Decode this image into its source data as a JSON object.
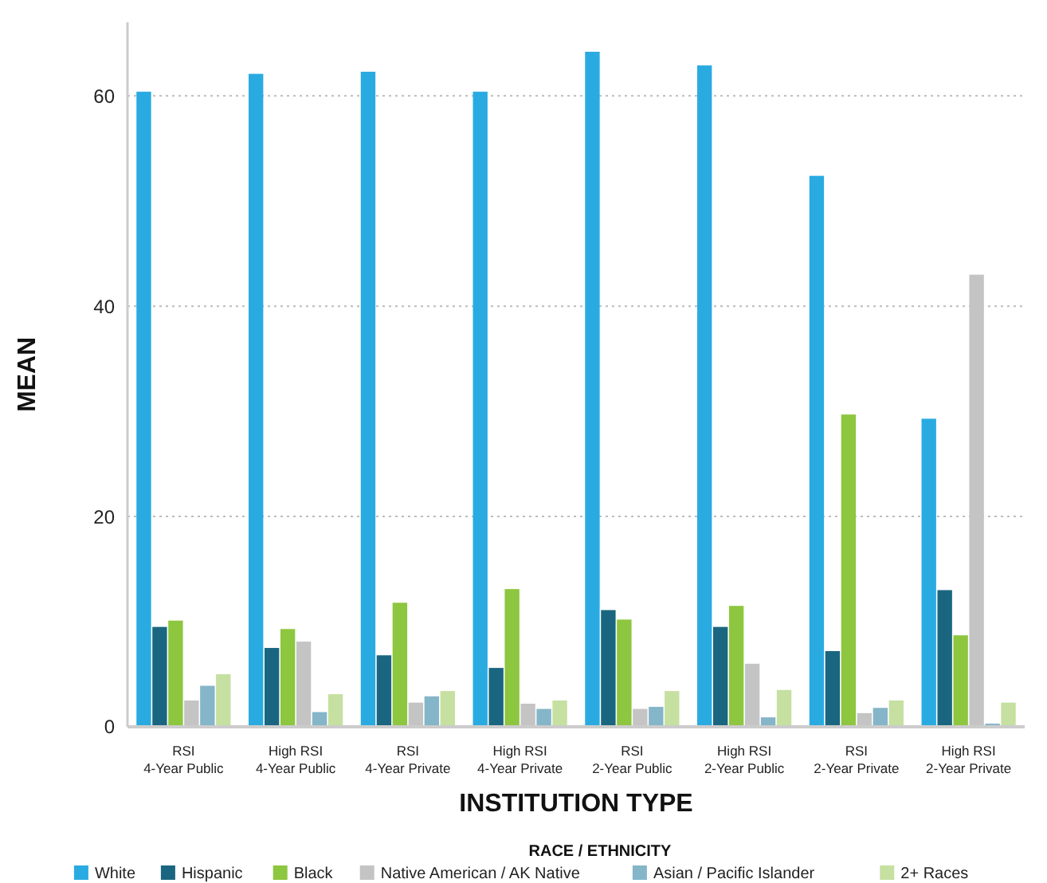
{
  "chart_data": {
    "type": "bar",
    "xlabel": "INSTITUTION TYPE",
    "ylabel": "MEAN",
    "legend_title": "RACE / ETHNICITY",
    "legend": "bottom",
    "grid": "y",
    "categories": [
      "RSI\n4-Year Public",
      "High RSI\n4-Year Public",
      "RSI\n4-Year Private",
      "High RSI\n4-Year Private",
      "RSI\n2-Year Public",
      "High RSI\n2-Year Public",
      "RSI\n2-Year Private",
      "High RSI\n2-Year Private"
    ],
    "ylim": [
      0,
      67
    ],
    "yticks": [
      0,
      20,
      40,
      60
    ],
    "series": [
      {
        "name": "White",
        "color": "#29abe2",
        "values": [
          60.4,
          62.1,
          62.3,
          60.4,
          64.2,
          62.9,
          52.4,
          29.3
        ]
      },
      {
        "name": "Hispanic",
        "color": "#1a6680",
        "values": [
          9.5,
          7.5,
          6.8,
          5.6,
          11.1,
          9.5,
          7.2,
          13.0
        ]
      },
      {
        "name": "Black",
        "color": "#8dc63f",
        "values": [
          10.1,
          9.3,
          11.8,
          13.1,
          10.2,
          11.5,
          29.7,
          8.7
        ]
      },
      {
        "name": "Native American / AK Native",
        "color": "#c4c4c4",
        "values": [
          2.5,
          8.1,
          2.3,
          2.2,
          1.7,
          6.0,
          1.3,
          43.0
        ]
      },
      {
        "name": "Asian / Pacific Islander",
        "color": "#85b5c8",
        "values": [
          3.9,
          1.4,
          2.9,
          1.7,
          1.9,
          0.9,
          1.8,
          0.3
        ]
      },
      {
        "name": "2+ Races",
        "color": "#c5e0a0",
        "values": [
          5.0,
          3.1,
          3.4,
          2.5,
          3.4,
          3.5,
          2.5,
          2.3
        ]
      }
    ]
  }
}
